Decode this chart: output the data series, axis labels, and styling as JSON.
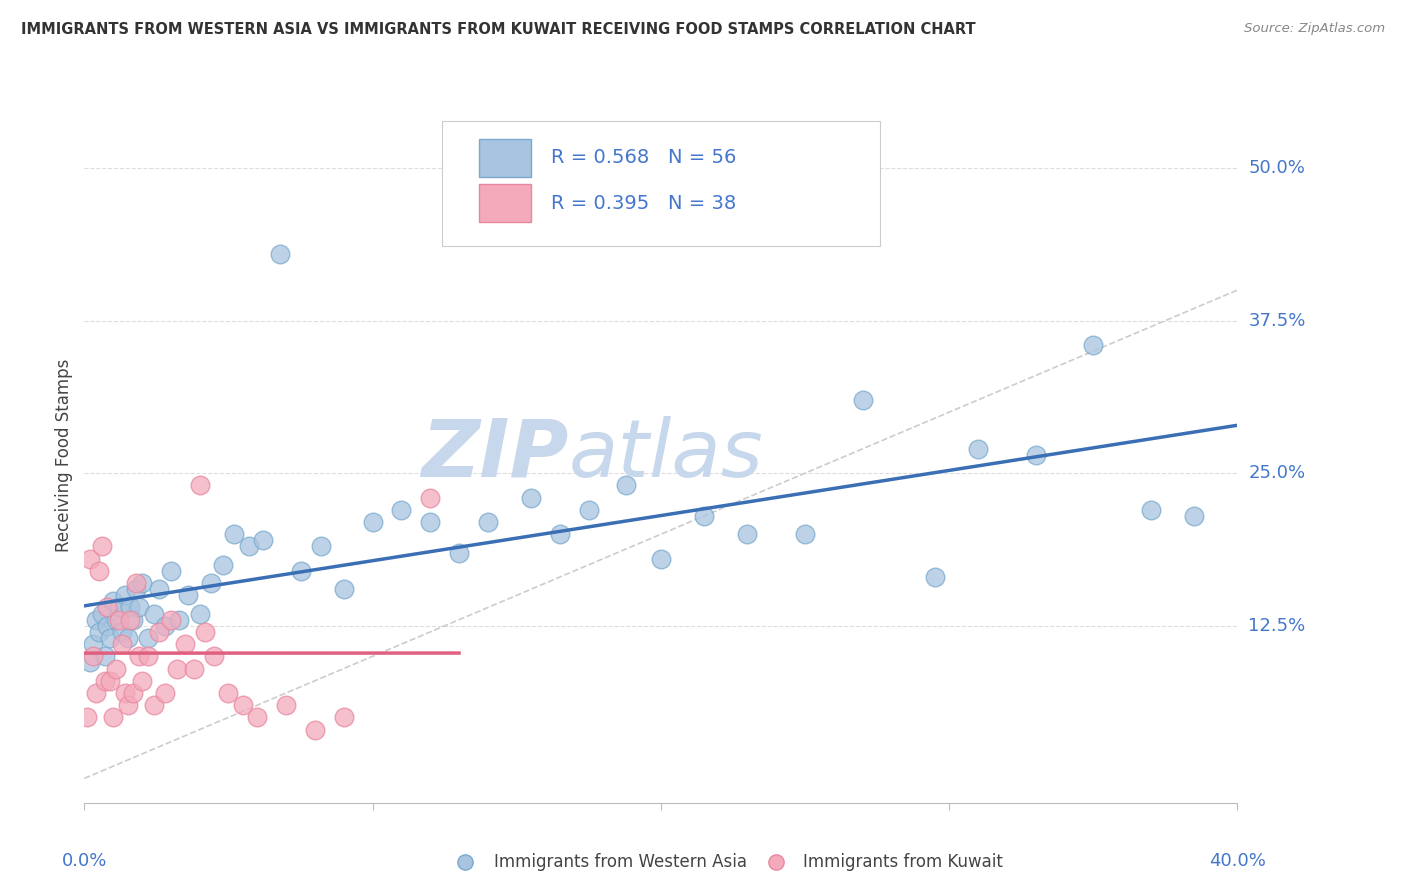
{
  "title": "IMMIGRANTS FROM WESTERN ASIA VS IMMIGRANTS FROM KUWAIT RECEIVING FOOD STAMPS CORRELATION CHART",
  "source": "Source: ZipAtlas.com",
  "ylabel": "Receiving Food Stamps",
  "yticks": [
    0.0,
    0.125,
    0.25,
    0.375,
    0.5
  ],
  "ytick_labels": [
    "",
    "12.5%",
    "25.0%",
    "37.5%",
    "50.0%"
  ],
  "xlim": [
    0.0,
    0.4
  ],
  "ylim": [
    -0.02,
    0.55
  ],
  "blue_R": "0.568",
  "blue_N": "56",
  "pink_R": "0.395",
  "pink_N": "38",
  "blue_color": "#A8C4E0",
  "pink_color": "#F4AABB",
  "blue_edge_color": "#7AAACE",
  "pink_edge_color": "#E888A0",
  "blue_line_color": "#3B6FB5",
  "pink_line_color": "#E06080",
  "diag_color": "#CCCCCC",
  "legend_text_color": "#4477CC",
  "legend_blue_label": "Immigrants from Western Asia",
  "legend_pink_label": "Immigrants from Kuwait",
  "watermark_zip_color": "#C8D8EC",
  "watermark_atlas_color": "#C8D8EC",
  "blue_scatter_x": [
    0.002,
    0.003,
    0.004,
    0.005,
    0.006,
    0.007,
    0.008,
    0.009,
    0.01,
    0.011,
    0.012,
    0.013,
    0.014,
    0.015,
    0.016,
    0.017,
    0.018,
    0.019,
    0.02,
    0.022,
    0.024,
    0.026,
    0.028,
    0.03,
    0.033,
    0.036,
    0.04,
    0.044,
    0.048,
    0.052,
    0.057,
    0.062,
    0.068,
    0.075,
    0.082,
    0.09,
    0.1,
    0.11,
    0.12,
    0.13,
    0.14,
    0.155,
    0.165,
    0.175,
    0.188,
    0.2,
    0.215,
    0.23,
    0.25,
    0.27,
    0.295,
    0.31,
    0.33,
    0.35,
    0.37,
    0.385
  ],
  "blue_scatter_y": [
    0.095,
    0.11,
    0.13,
    0.12,
    0.135,
    0.1,
    0.125,
    0.115,
    0.145,
    0.13,
    0.14,
    0.12,
    0.15,
    0.115,
    0.14,
    0.13,
    0.155,
    0.14,
    0.16,
    0.115,
    0.135,
    0.155,
    0.125,
    0.17,
    0.13,
    0.15,
    0.135,
    0.16,
    0.175,
    0.2,
    0.19,
    0.195,
    0.43,
    0.17,
    0.19,
    0.155,
    0.21,
    0.22,
    0.21,
    0.185,
    0.21,
    0.23,
    0.2,
    0.22,
    0.24,
    0.18,
    0.215,
    0.2,
    0.2,
    0.31,
    0.165,
    0.27,
    0.265,
    0.355,
    0.22,
    0.215
  ],
  "pink_scatter_x": [
    0.001,
    0.002,
    0.003,
    0.004,
    0.005,
    0.006,
    0.007,
    0.008,
    0.009,
    0.01,
    0.011,
    0.012,
    0.013,
    0.014,
    0.015,
    0.016,
    0.017,
    0.018,
    0.019,
    0.02,
    0.022,
    0.024,
    0.026,
    0.028,
    0.03,
    0.032,
    0.035,
    0.038,
    0.04,
    0.042,
    0.045,
    0.05,
    0.055,
    0.06,
    0.07,
    0.08,
    0.09,
    0.12
  ],
  "pink_scatter_y": [
    0.05,
    0.18,
    0.1,
    0.07,
    0.17,
    0.19,
    0.08,
    0.14,
    0.08,
    0.05,
    0.09,
    0.13,
    0.11,
    0.07,
    0.06,
    0.13,
    0.07,
    0.16,
    0.1,
    0.08,
    0.1,
    0.06,
    0.12,
    0.07,
    0.13,
    0.09,
    0.11,
    0.09,
    0.24,
    0.12,
    0.1,
    0.07,
    0.06,
    0.05,
    0.06,
    0.04,
    0.05,
    0.23
  ],
  "pink_line_x_end": 0.13
}
